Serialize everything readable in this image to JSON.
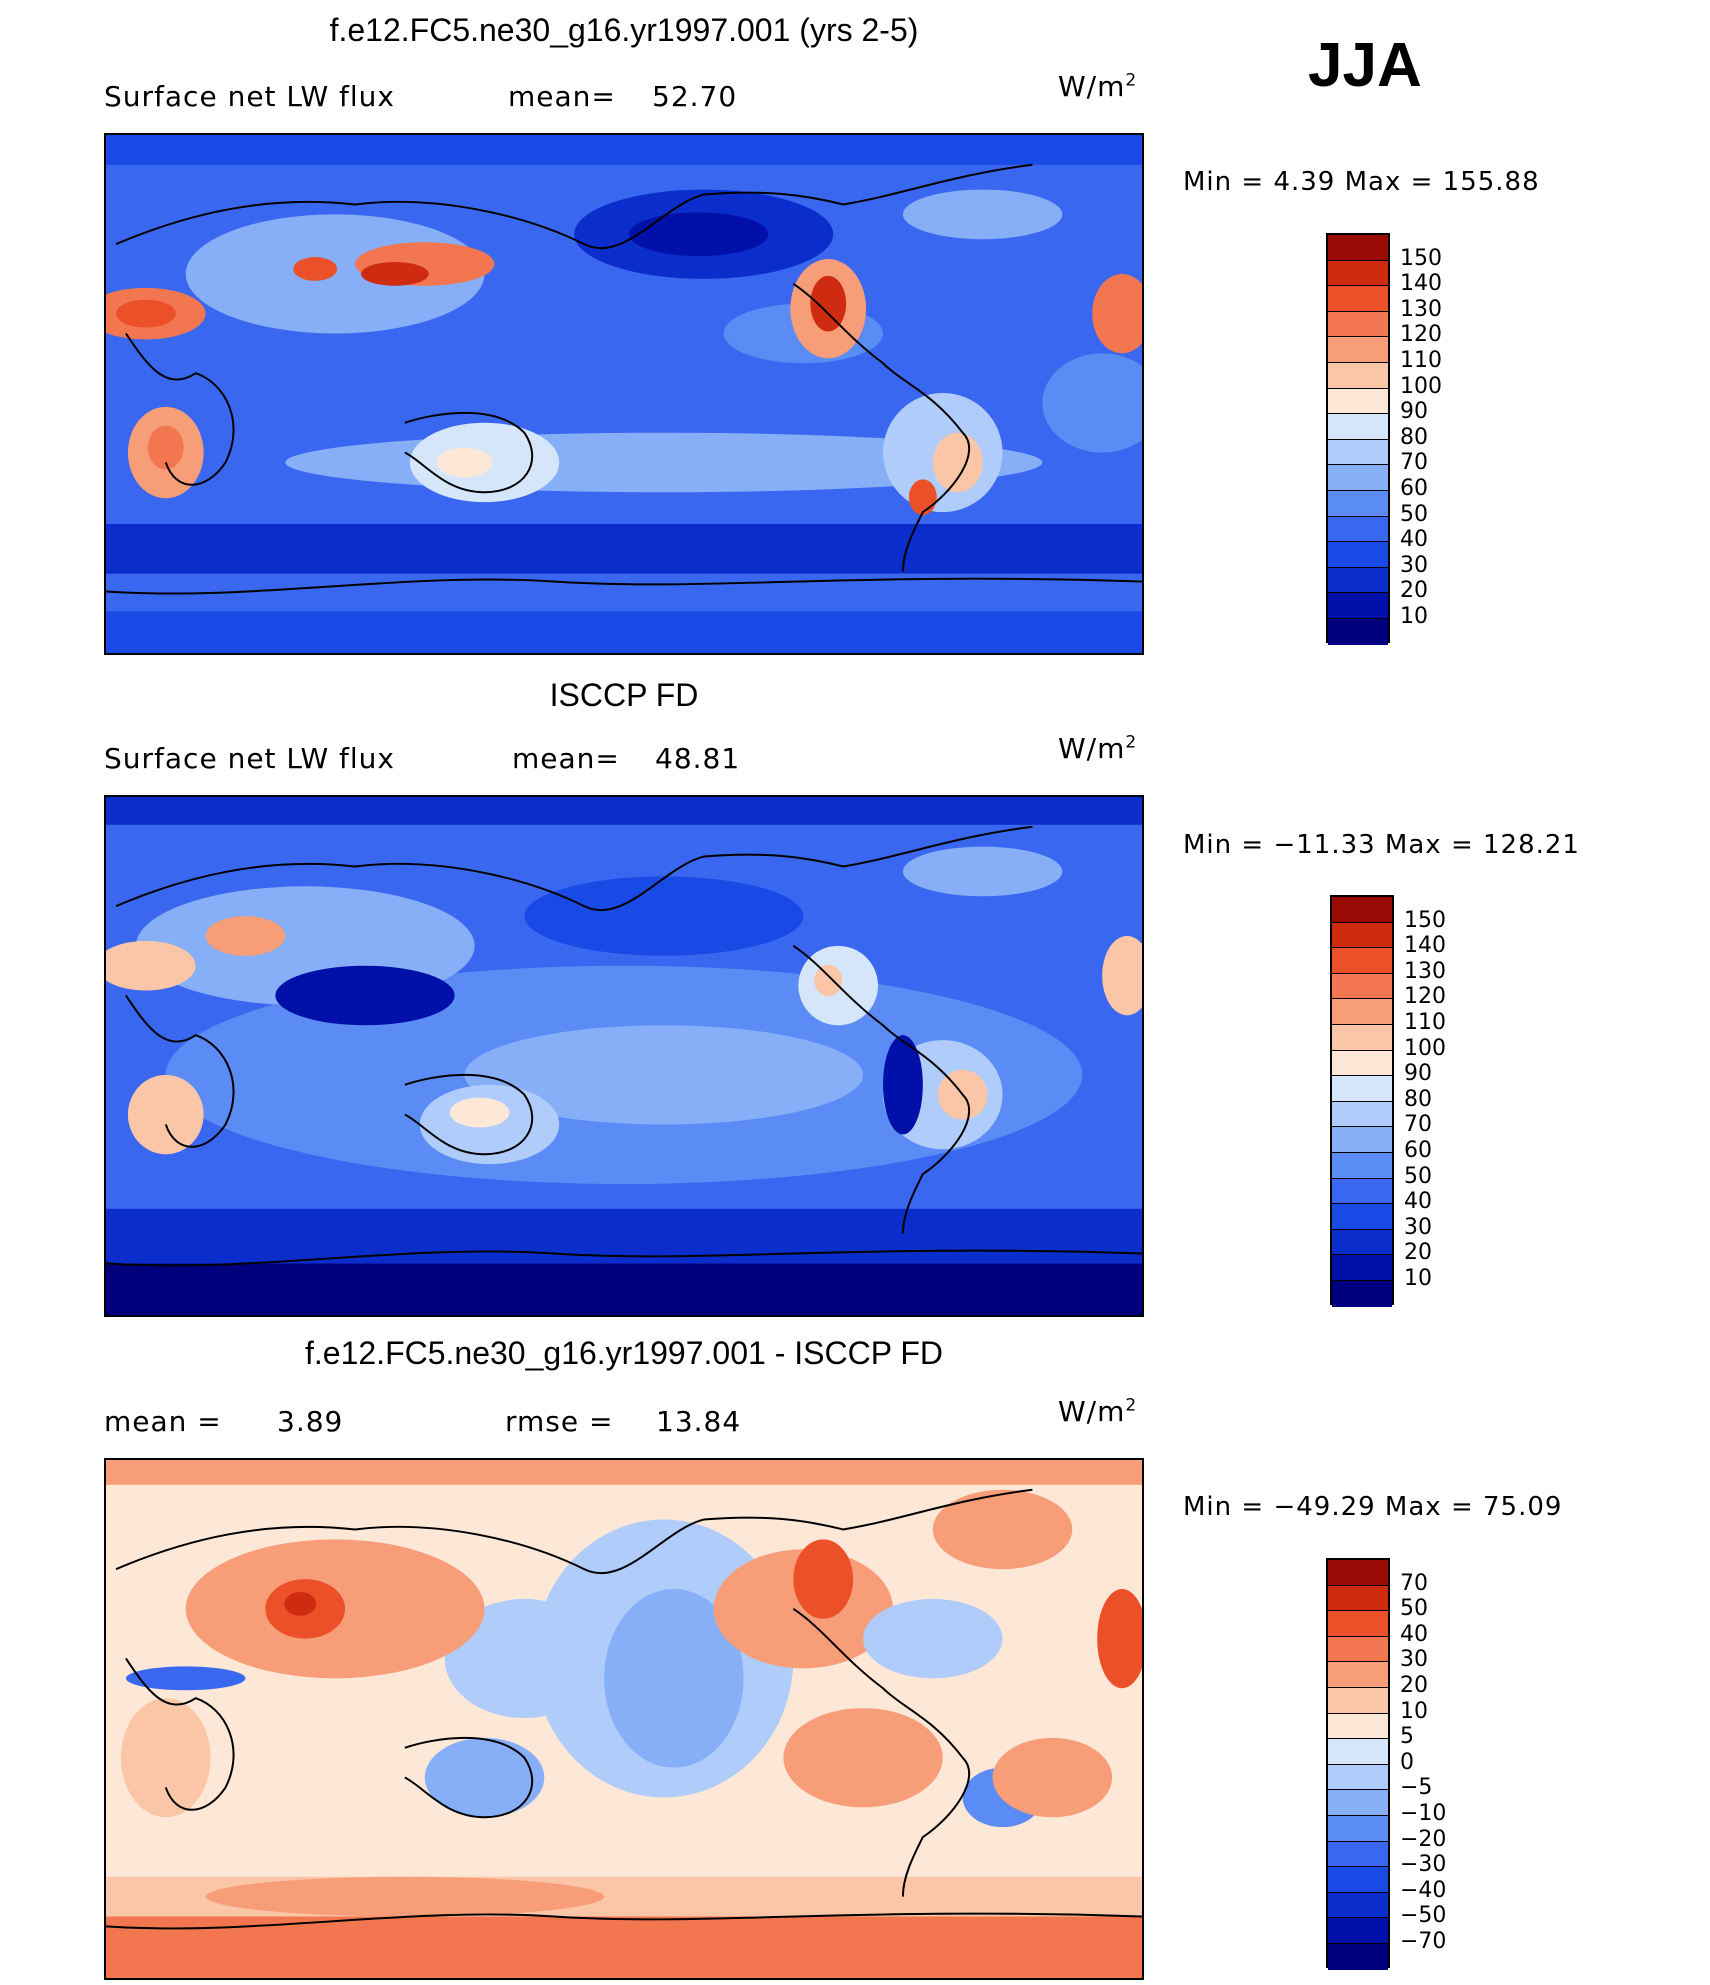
{
  "season": "JJA",
  "unit_main": "W/m",
  "unit_sup": "2",
  "colors": {
    "coast": "#000000",
    "abs_scale": [
      "#00007f",
      "#0010a8",
      "#0a2dcc",
      "#1a4ae6",
      "#3a67f0",
      "#5b8cf5",
      "#86aff8",
      "#afccfa",
      "#d5e6fb",
      "#fde7d6",
      "#fbc6a7",
      "#f79e79",
      "#f27650",
      "#eb5028",
      "#cf2b10",
      "#9a0a05"
    ],
    "diff_scale": [
      "#00007f",
      "#0010a8",
      "#0a2dcc",
      "#1a4ae6",
      "#3a67f0",
      "#5b8cf5",
      "#86aff8",
      "#afccfa",
      "#d5e6fb",
      "#fde7d6",
      "#fbc6a7",
      "#f79e79",
      "#f27650",
      "#eb5028",
      "#cf2b10",
      "#9a0a05"
    ]
  },
  "panels": [
    {
      "title": "f.e12.FC5.ne30_g16.yr1997.001 (yrs 2-5)",
      "left_label": "Surface net LW flux",
      "mid_label": "mean=",
      "mid_value": "52.70",
      "minmax": "Min =    4.39  Max  =  155.88",
      "levels": [
        "150",
        "140",
        "130",
        "120",
        "110",
        "100",
        "90",
        "80",
        "70",
        "60",
        "50",
        "40",
        "30",
        "20",
        "10"
      ]
    },
    {
      "title": "ISCCP FD",
      "left_label": "Surface net LW flux",
      "mid_label": "mean=",
      "mid_value": "48.81",
      "minmax": "Min  =  −11.33  Max  =  128.21",
      "levels": [
        "150",
        "140",
        "130",
        "120",
        "110",
        "100",
        "90",
        "80",
        "70",
        "60",
        "50",
        "40",
        "30",
        "20",
        "10"
      ]
    },
    {
      "title": "f.e12.FC5.ne30_g16.yr1997.001 - ISCCP FD",
      "left_label": "mean =",
      "left_value": "3.89",
      "mid_label": "rmse =",
      "mid_value": "13.84",
      "minmax": "Min  =  −49.29  Max  =    75.09",
      "levels": [
        "70",
        "50",
        "40",
        "30",
        "20",
        "10",
        "5",
        "0",
        "−5",
        "−10",
        "−20",
        "−30",
        "−40",
        "−50",
        "−70"
      ]
    }
  ]
}
